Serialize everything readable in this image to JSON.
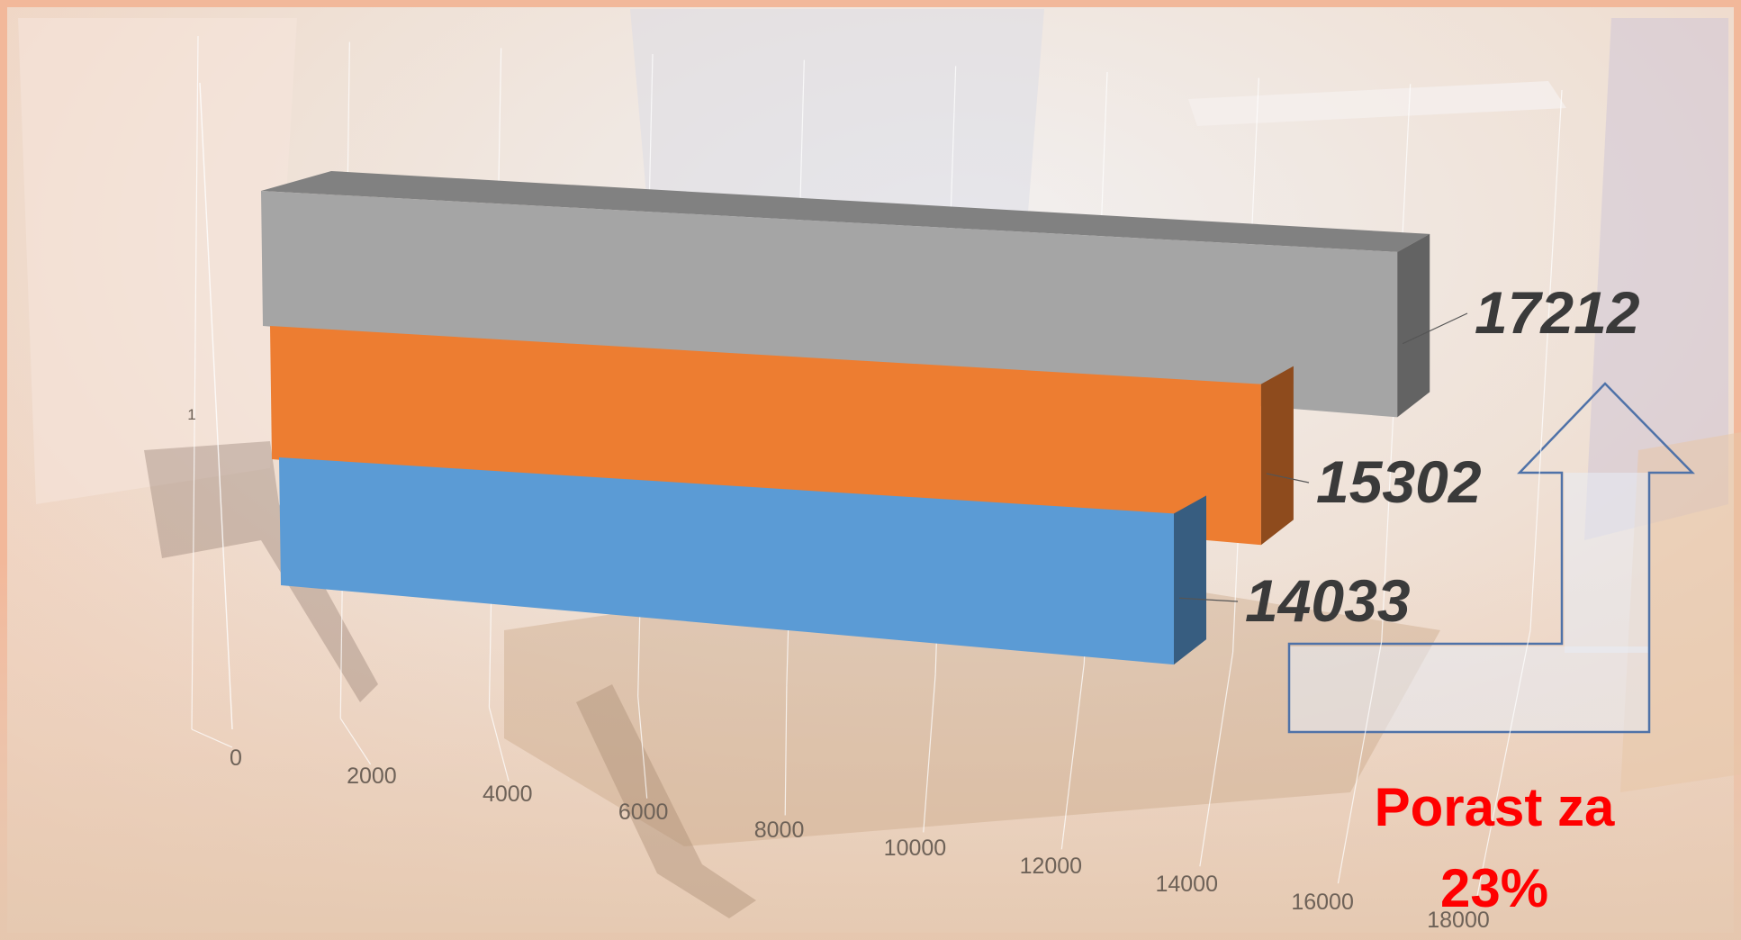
{
  "chart_data": {
    "type": "bar",
    "orientation": "horizontal",
    "style": "3d",
    "categories": [
      "1"
    ],
    "series": [
      {
        "values": [
          14033
        ],
        "color": "#5b9bd5"
      },
      {
        "values": [
          15302
        ],
        "color": "#ed7d31"
      },
      {
        "values": [
          17212
        ],
        "color": "#a5a5a5"
      }
    ],
    "x_ticks": [
      "0",
      "2000",
      "4000",
      "6000",
      "8000",
      "10000",
      "12000",
      "14000",
      "16000",
      "18000"
    ],
    "xlim": [
      0,
      18000
    ],
    "grid": true,
    "annotation": {
      "line1": "Porast za",
      "line2": "23%",
      "color": "#ff0000"
    }
  }
}
